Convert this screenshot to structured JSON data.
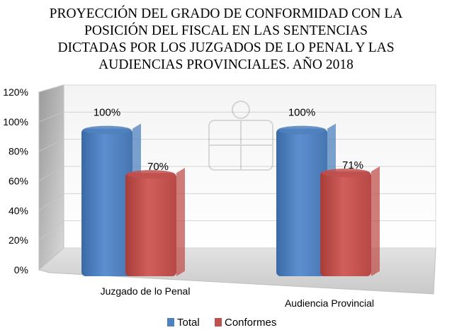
{
  "chart_data": {
    "type": "bar",
    "title": "PROYECCIÓN DEL GRADO DE CONFORMIDAD CON LA\nPOSICIÓN DEL FISCAL EN LAS SENTENCIAS\nDICTADAS POR LOS JUZGADOS DE LO PENAL Y LAS\nAUDIENCIAS PROVINCIALES. AÑO 2018",
    "categories": [
      "Juzgado de lo Penal",
      "Audiencia Provincial"
    ],
    "series": [
      {
        "name": "Total",
        "values": [
          100,
          100
        ],
        "labels": [
          "100%",
          "100%"
        ],
        "color": "#4F81BD"
      },
      {
        "name": "Conformes",
        "values": [
          70,
          71
        ],
        "labels": [
          "70%",
          "71%"
        ],
        "color": "#C0504D"
      }
    ],
    "ylim": [
      0,
      120
    ],
    "yticks": [
      "0%",
      "20%",
      "40%",
      "60%",
      "80%",
      "100%",
      "120%"
    ],
    "grid": true,
    "perspective": "3d",
    "legend_position": "bottom",
    "watermark": "FISCALÍA GENERAL DEL ESTADO"
  }
}
